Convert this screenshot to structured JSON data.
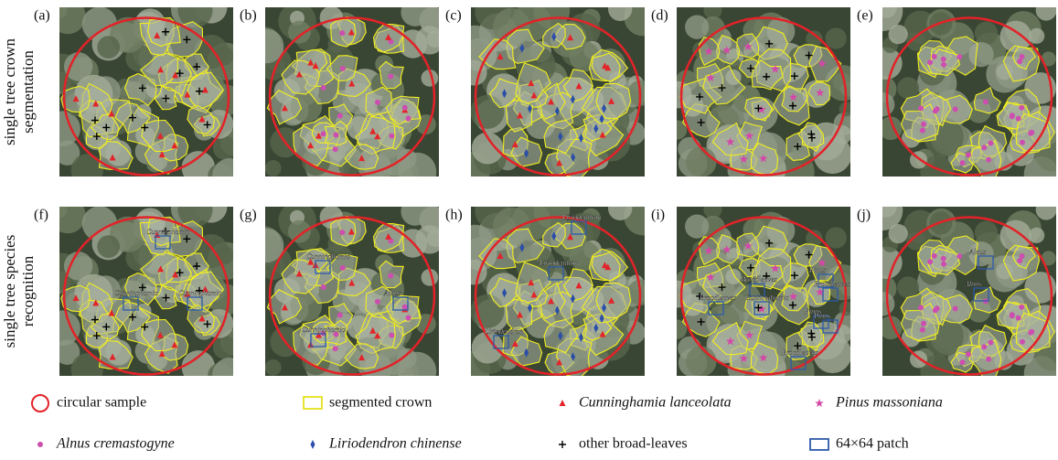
{
  "row_labels": [
    [
      "single tree crown",
      "segmentation"
    ],
    [
      "single tree species",
      "recognition"
    ]
  ],
  "panels": [
    {
      "label": "(a)",
      "annotations": []
    },
    {
      "label": "(b)",
      "annotations": []
    },
    {
      "label": "(c)",
      "annotations": []
    },
    {
      "label": "(d)",
      "annotations": []
    },
    {
      "label": "(e)",
      "annotations": []
    },
    {
      "label": "(f)",
      "annotations": [
        "Cunninghamia",
        "Cunninghamia",
        "Cunninghamia"
      ]
    },
    {
      "label": "(g)",
      "annotations": [
        "Cunninghamia",
        "Alnus",
        "Cunninghamia"
      ]
    },
    {
      "label": "(h)",
      "annotations": [
        "Liriodendron",
        "Liriodendron",
        "Liriodendron"
      ]
    },
    {
      "label": "(i)",
      "annotations": [
        "Pinus",
        "Broadleaves",
        "Broadleaves",
        "Broadleaves",
        "Cunninghamia",
        "Pinus",
        "Pinus",
        "Broadleaves"
      ]
    },
    {
      "label": "(j)",
      "annotations": [
        "Alnus",
        "Alnus"
      ]
    }
  ],
  "legend": [
    "circular sample",
    "segmented crown",
    "Cunninghamia lanceolata",
    "Pinus massoniana",
    "Alnus cremastogyne",
    "Liriodendron chinense",
    "other broad-leaves",
    "64×64 patch"
  ]
}
